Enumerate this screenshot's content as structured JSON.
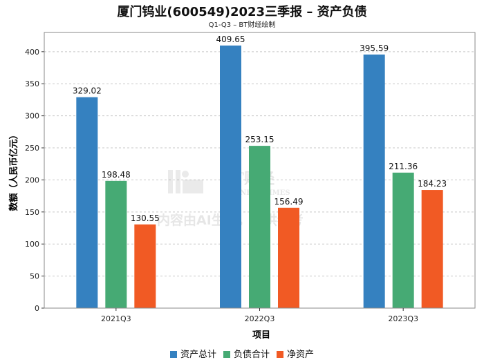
{
  "chart_data": {
    "type": "bar",
    "title": "厦门钨业(600549)2023三季报 – 资产负债",
    "subtitle": "Q1-Q3 – BT财经绘制",
    "categories": [
      "2021Q3",
      "2022Q3",
      "2023Q3"
    ],
    "series": [
      {
        "name": "资产总计",
        "color": "#3581c0",
        "values": [
          329.02,
          409.65,
          395.59
        ],
        "labels": [
          "329.02",
          "409.65",
          "395.59"
        ]
      },
      {
        "name": "负债合计",
        "color": "#46aa74",
        "values": [
          198.48,
          253.15,
          211.36
        ],
        "labels": [
          "198.48",
          "253.15",
          "211.36"
        ]
      },
      {
        "name": "净资产",
        "color": "#f15a24",
        "values": [
          130.55,
          156.49,
          184.23
        ],
        "labels": [
          "130.55",
          "156.49",
          "184.23"
        ]
      }
    ],
    "xlabel": "项目",
    "ylabel": "数额（人民币亿元）",
    "ylim": [
      0,
      430
    ],
    "yticks": [
      0,
      50,
      100,
      150,
      200,
      250,
      300,
      350,
      400
    ],
    "grid": true,
    "legend": "bottom-center"
  },
  "watermark": {
    "logo_text": "BT财经",
    "logo_sub": "BUSINESS TIMES",
    "notice": "内容由AI生成，仅供参考"
  }
}
